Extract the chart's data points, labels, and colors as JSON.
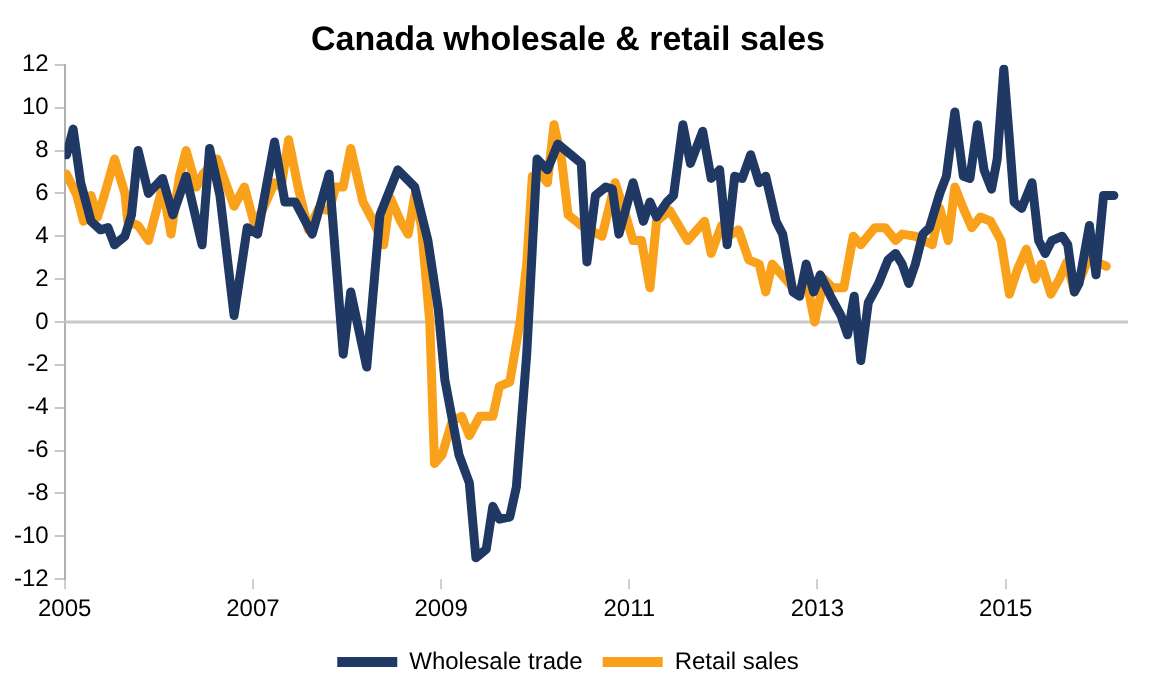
{
  "chart_data": {
    "type": "line",
    "title": "Canada wholesale & retail sales",
    "xlim": [
      2005,
      2016.3
    ],
    "xticks": [
      2005,
      2007,
      2009,
      2011,
      2013,
      2015
    ],
    "ylim": [
      -12,
      12
    ],
    "yticks": [
      -12,
      -10,
      -8,
      -6,
      -4,
      -2,
      0,
      2,
      4,
      6,
      8,
      10,
      12
    ],
    "ref_lines": [
      {
        "axis": "y",
        "value": 0,
        "color": "#c8c8c8"
      }
    ],
    "legend": "bottom",
    "marker": "none",
    "line_style": "solid",
    "series": [
      {
        "name": "Wholesale trade",
        "color": "#1f3864",
        "x": [
          2005.02,
          2005.09,
          2005.17,
          2005.28,
          2005.38,
          2005.46,
          2005.53,
          2005.64,
          2005.71,
          2005.78,
          2005.89,
          2006.04,
          2006.15,
          2006.29,
          2006.46,
          2006.54,
          2006.65,
          2006.8,
          2006.94,
          2007.05,
          2007.23,
          2007.34,
          2007.45,
          2007.63,
          2007.81,
          2007.96,
          2008.04,
          2008.21,
          2008.35,
          2008.54,
          2008.72,
          2008.86,
          2008.97,
          2009.04,
          2009.19,
          2009.3,
          2009.37,
          2009.48,
          2009.55,
          2009.62,
          2009.73,
          2009.8,
          2009.91,
          2010.02,
          2010.13,
          2010.24,
          2010.38,
          2010.49,
          2010.55,
          2010.64,
          2010.75,
          2010.82,
          2010.89,
          2011.04,
          2011.15,
          2011.22,
          2011.29,
          2011.4,
          2011.47,
          2011.57,
          2011.65,
          2011.78,
          2011.87,
          2011.96,
          2012.04,
          2012.12,
          2012.2,
          2012.29,
          2012.38,
          2012.45,
          2012.56,
          2012.63,
          2012.74,
          2012.81,
          2012.88,
          2012.96,
          2013.03,
          2013.14,
          2013.25,
          2013.32,
          2013.39,
          2013.46,
          2013.54,
          2013.65,
          2013.75,
          2013.83,
          2013.9,
          2013.97,
          2014.04,
          2014.12,
          2014.19,
          2014.3,
          2014.37,
          2014.46,
          2014.55,
          2014.62,
          2014.7,
          2014.77,
          2014.85,
          2014.91,
          2014.98,
          2015.04,
          2015.09,
          2015.17,
          2015.28,
          2015.35,
          2015.42,
          2015.49,
          2015.6,
          2015.66,
          2015.73,
          2015.78,
          2015.89,
          2015.96,
          2016.04,
          2016.15
        ],
        "values": [
          7.8,
          9.0,
          6.5,
          4.7,
          4.3,
          4.4,
          3.6,
          4.0,
          5.0,
          8.0,
          6.0,
          6.7,
          5.0,
          6.8,
          3.6,
          8.1,
          5.9,
          0.3,
          4.4,
          4.1,
          8.4,
          5.6,
          5.6,
          4.1,
          6.9,
          -1.5,
          1.4,
          -2.1,
          5.0,
          7.1,
          6.3,
          3.8,
          0.6,
          -2.7,
          -6.2,
          -7.5,
          -11.0,
          -10.6,
          -8.6,
          -9.2,
          -9.1,
          -7.7,
          -1.5,
          7.6,
          7.1,
          8.3,
          7.8,
          7.4,
          2.8,
          5.9,
          6.3,
          6.2,
          4.1,
          6.5,
          4.7,
          5.6,
          4.9,
          5.6,
          5.9,
          9.2,
          7.4,
          8.9,
          6.7,
          7.1,
          3.6,
          6.8,
          6.7,
          7.8,
          6.5,
          6.8,
          4.7,
          4.1,
          1.4,
          1.2,
          2.7,
          1.4,
          2.2,
          1.2,
          0.3,
          -0.6,
          1.2,
          -1.8,
          0.9,
          1.8,
          2.9,
          3.2,
          2.7,
          1.8,
          2.7,
          4.1,
          4.4,
          6.0,
          6.8,
          9.8,
          6.8,
          6.7,
          9.2,
          7.1,
          6.2,
          7.6,
          11.8,
          8.5,
          5.6,
          5.3,
          6.5,
          3.8,
          3.2,
          3.8,
          4.0,
          3.6,
          1.4,
          1.8,
          4.5,
          2.2,
          5.9,
          5.9
        ]
      },
      {
        "name": "Retail sales",
        "color": "#f9a11b",
        "x": [
          2005.02,
          2005.13,
          2005.2,
          2005.28,
          2005.35,
          2005.42,
          2005.53,
          2005.64,
          2005.67,
          2005.78,
          2005.89,
          2006.04,
          2006.13,
          2006.22,
          2006.29,
          2006.4,
          2006.47,
          2006.62,
          2006.8,
          2006.91,
          2007.02,
          2007.12,
          2007.23,
          2007.3,
          2007.38,
          2007.48,
          2007.59,
          2007.7,
          2007.81,
          2007.88,
          2007.96,
          2008.04,
          2008.17,
          2008.28,
          2008.39,
          2008.46,
          2008.57,
          2008.65,
          2008.72,
          2008.79,
          2008.88,
          2008.93,
          2009.01,
          2009.12,
          2009.22,
          2009.3,
          2009.41,
          2009.55,
          2009.62,
          2009.73,
          2009.84,
          2009.91,
          2009.97,
          2010.06,
          2010.13,
          2010.2,
          2010.28,
          2010.35,
          2010.49,
          2010.71,
          2010.85,
          2010.96,
          2011.04,
          2011.13,
          2011.22,
          2011.29,
          2011.43,
          2011.62,
          2011.8,
          2011.87,
          2011.98,
          2012.09,
          2012.16,
          2012.27,
          2012.38,
          2012.45,
          2012.52,
          2012.7,
          2012.78,
          2012.88,
          2012.97,
          2013.07,
          2013.16,
          2013.28,
          2013.38,
          2013.46,
          2013.61,
          2013.72,
          2013.83,
          2013.9,
          2014.04,
          2014.22,
          2014.3,
          2014.39,
          2014.46,
          2014.55,
          2014.64,
          2014.73,
          2014.84,
          2014.95,
          2015.04,
          2015.13,
          2015.22,
          2015.31,
          2015.38,
          2015.48,
          2015.57,
          2015.65,
          2015.73,
          2015.82,
          2015.89,
          2015.96,
          2016.07
        ],
        "values": [
          6.9,
          5.9,
          4.7,
          5.9,
          4.9,
          5.9,
          7.6,
          6.0,
          4.7,
          4.5,
          3.8,
          6.3,
          4.1,
          6.8,
          8.0,
          6.3,
          6.9,
          7.6,
          5.4,
          6.3,
          4.5,
          5.4,
          6.5,
          6.3,
          8.5,
          6.3,
          4.3,
          5.3,
          5.2,
          6.3,
          6.3,
          8.1,
          5.6,
          4.7,
          3.6,
          5.8,
          4.7,
          4.1,
          5.9,
          4.5,
          0.0,
          -6.6,
          -6.2,
          -4.6,
          -4.4,
          -5.3,
          -4.4,
          -4.4,
          -3.0,
          -2.8,
          0.0,
          2.7,
          6.8,
          6.9,
          6.5,
          9.2,
          7.6,
          5.0,
          4.5,
          4.0,
          6.5,
          5.0,
          3.8,
          3.8,
          1.6,
          4.7,
          5.2,
          3.8,
          4.7,
          3.2,
          4.5,
          4.1,
          4.3,
          2.9,
          2.7,
          1.4,
          2.7,
          1.8,
          1.3,
          2.0,
          0.0,
          2.0,
          1.6,
          1.6,
          4.0,
          3.6,
          4.4,
          4.4,
          3.8,
          4.1,
          4.0,
          3.6,
          5.3,
          3.8,
          6.3,
          5.3,
          4.4,
          4.9,
          4.7,
          3.8,
          1.3,
          2.5,
          3.4,
          2.0,
          2.7,
          1.3,
          2.0,
          2.8,
          1.4,
          2.3,
          3.1,
          2.8,
          2.6
        ]
      }
    ]
  }
}
